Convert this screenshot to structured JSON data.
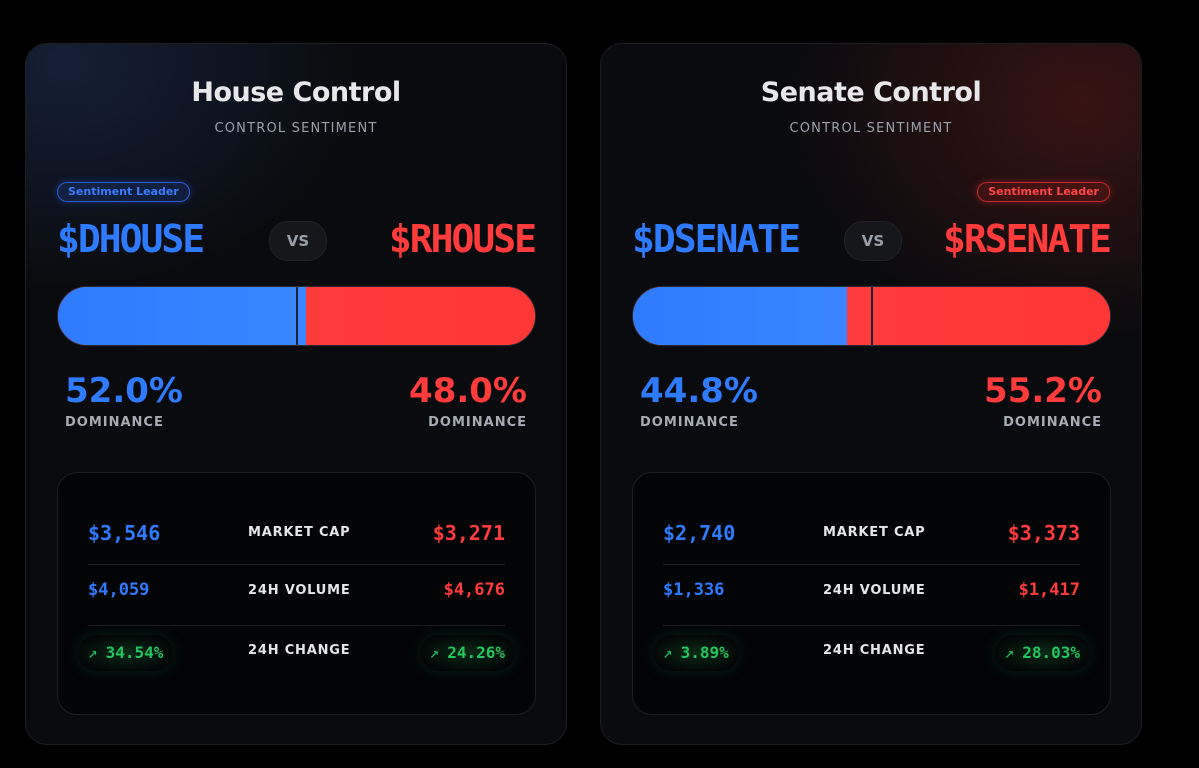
{
  "colors": {
    "dem": "#2f7bff",
    "rep": "#ff3b3b",
    "positive": "#22c55e",
    "background": "#000000",
    "card": "#0a0b0e"
  },
  "cards": [
    {
      "title": "House Control",
      "subtitle": "CONTROL SENTIMENT",
      "leader_badge": "Sentiment Leader",
      "leader_side": "dem",
      "dem_ticker": "$DHOUSE",
      "rep_ticker": "$RHOUSE",
      "vs_label": "VS",
      "dem_share": 52.0,
      "dem_pct": "52.0%",
      "rep_pct": "48.0%",
      "dominance_label": "DOMINANCE",
      "stats": {
        "market_cap": {
          "label": "MARKET CAP",
          "dem": "$3,546",
          "rep": "$3,271"
        },
        "volume": {
          "label": "24H VOLUME",
          "dem": "$4,059",
          "rep": "$4,676"
        },
        "change": {
          "label": "24H CHANGE",
          "dem": "34.54%",
          "rep": "24.26%",
          "arrow_icon": "arrow-up-right-icon"
        }
      }
    },
    {
      "title": "Senate Control",
      "subtitle": "CONTROL SENTIMENT",
      "leader_badge": "Sentiment Leader",
      "leader_side": "rep",
      "dem_ticker": "$DSENATE",
      "rep_ticker": "$RSENATE",
      "vs_label": "VS",
      "dem_share": 44.8,
      "dem_pct": "44.8%",
      "rep_pct": "55.2%",
      "dominance_label": "DOMINANCE",
      "stats": {
        "market_cap": {
          "label": "MARKET CAP",
          "dem": "$2,740",
          "rep": "$3,373"
        },
        "volume": {
          "label": "24H VOLUME",
          "dem": "$1,336",
          "rep": "$1,417"
        },
        "change": {
          "label": "24H CHANGE",
          "dem": "3.89%",
          "rep": "28.03%",
          "arrow_icon": "arrow-up-right-icon"
        }
      }
    }
  ]
}
